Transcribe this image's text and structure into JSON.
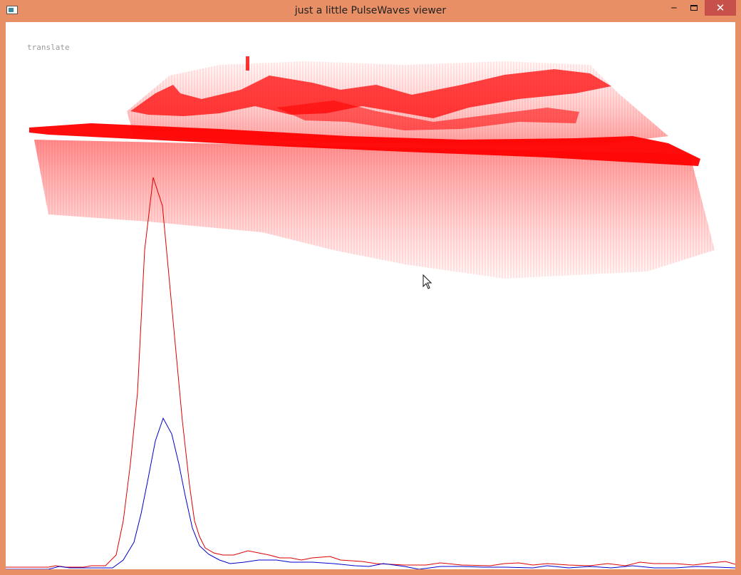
{
  "window": {
    "title": "just a little PulseWaves viewer",
    "controls": {
      "minimize": "‒",
      "close": "✕"
    }
  },
  "viewer": {
    "mode_label": "translate"
  },
  "colors": {
    "frame": "#e98f66",
    "close_bg": "#c7504b",
    "pulses": "#ff0000",
    "outgoing_wave": "#dd0000",
    "returning_wave": "#0000cc"
  }
}
